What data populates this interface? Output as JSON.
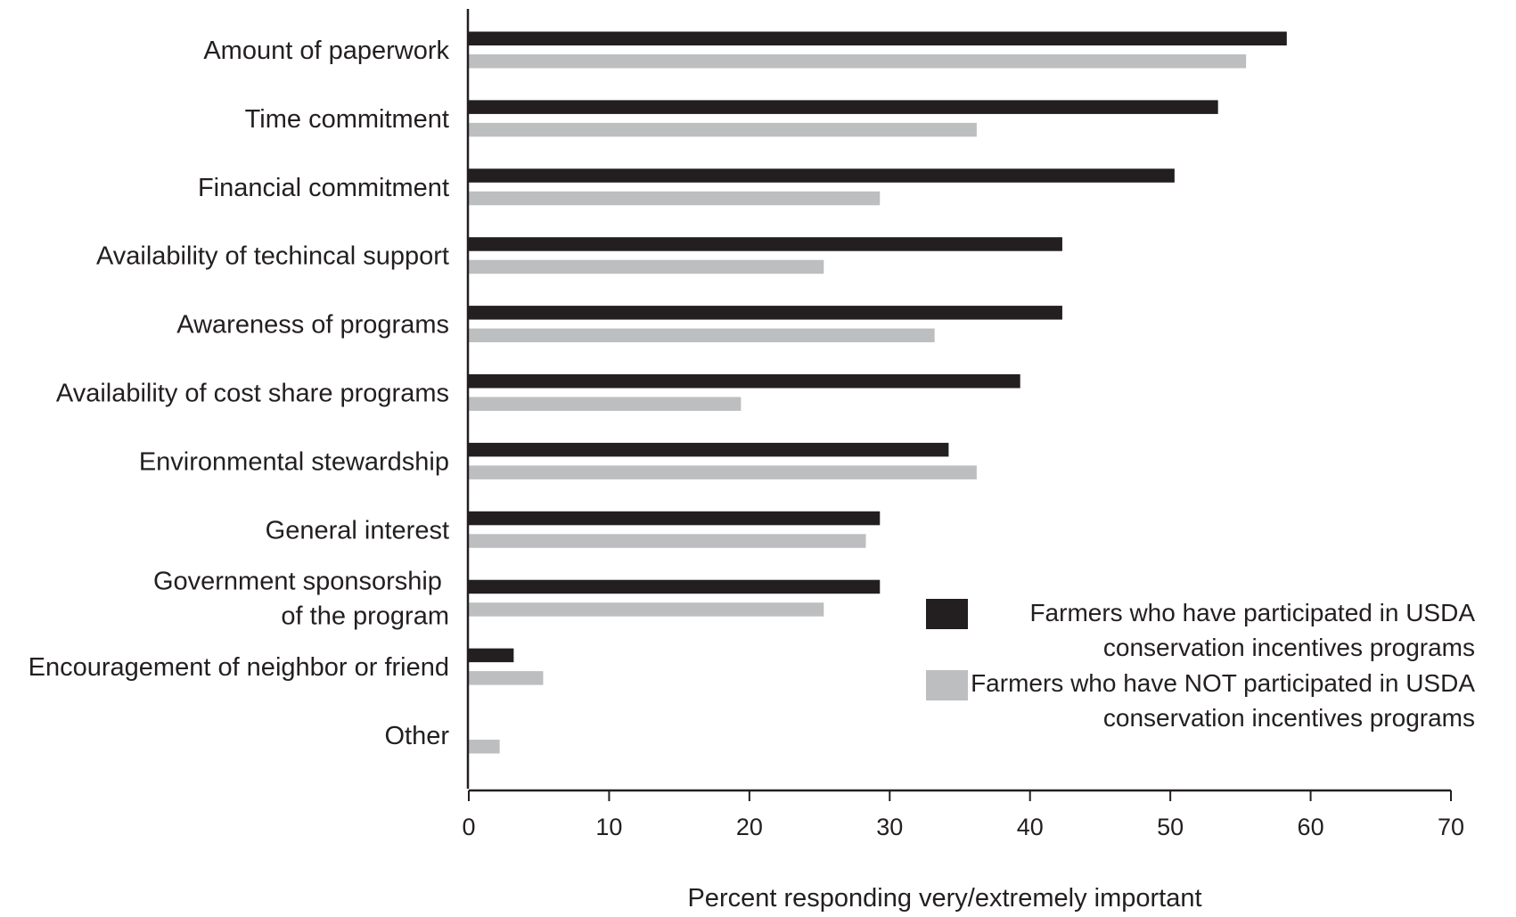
{
  "chart_data": {
    "type": "bar",
    "orientation": "horizontal",
    "categories": [
      [
        "Amount of paperwork"
      ],
      [
        "Time commitment"
      ],
      [
        "Financial commitment"
      ],
      [
        "Availability of techincal support"
      ],
      [
        "Awareness of programs"
      ],
      [
        "Availability of cost share programs"
      ],
      [
        "Environmental stewardship"
      ],
      [
        "General interest"
      ],
      [
        "Government sponsorship ",
        "of the program"
      ],
      [
        "Encouragement of neighbor or friend"
      ],
      [
        "Other"
      ]
    ],
    "series": [
      {
        "name": [
          "Farmers who have participated in USDA",
          "conservation incentives programs"
        ],
        "color": "#231f20",
        "values": [
          58.3,
          53.4,
          50.3,
          42.3,
          42.3,
          39.3,
          34.2,
          29.3,
          29.3,
          3.2,
          null
        ]
      },
      {
        "name": [
          "Farmers who have NOT participated in USDA",
          "conservation incentives programs"
        ],
        "color": "#bcbec0",
        "values": [
          55.4,
          36.2,
          29.3,
          25.3,
          33.2,
          19.4,
          36.2,
          28.3,
          25.3,
          5.3,
          2.2
        ]
      }
    ],
    "xlabel": "Percent responding very/extremely important",
    "xlim": [
      0,
      70
    ],
    "xticks": [
      0,
      10,
      20,
      30,
      40,
      50,
      60,
      70
    ],
    "grid": false,
    "legend_position": "bottom-right"
  }
}
